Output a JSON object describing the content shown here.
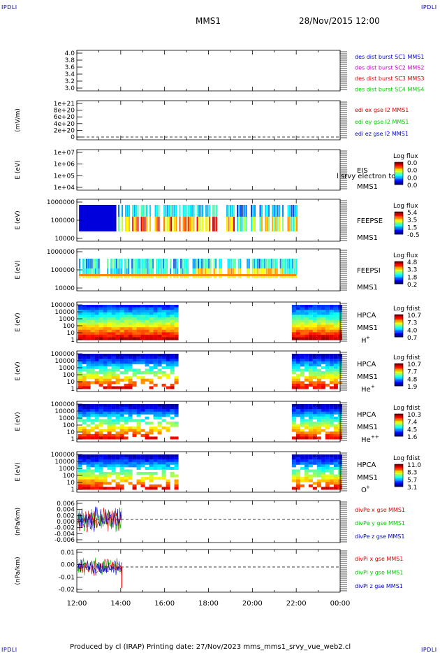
{
  "corner_tag": "IPDLI",
  "header": {
    "spacecraft": "MMS1",
    "date": "28/Nov/2015 12:00"
  },
  "footer": {
    "text": "Produced by cl (IRAP)   Printing date: 27/Nov/2023   mms_mms1_srvy_vue_web2.cl"
  },
  "time_axis": {
    "labels": [
      "12:00",
      "14:00",
      "16:00",
      "18:00",
      "20:00",
      "22:00",
      "00:00"
    ]
  },
  "colors": {
    "red": "#dd0000",
    "green": "#00cc00",
    "blue": "#0000cc",
    "magenta": "#cc00cc"
  },
  "chart_data": [
    {
      "type": "line",
      "yticks": [
        "4.0",
        "3.8",
        "3.6",
        "3.4",
        "3.2",
        "3.0"
      ],
      "legend": [
        {
          "text": "des dist burst SC1 MMS1",
          "color": "#0000cc"
        },
        {
          "text": "des dist burst SC2 MMS2",
          "color": "#cc00cc"
        },
        {
          "text": "des dist burst SC3 MMS3",
          "color": "#dd0000"
        },
        {
          "text": "des dist burst SC4 MMS4",
          "color": "#00cc00"
        }
      ]
    },
    {
      "type": "line",
      "ylabel": "(mV/m)",
      "yticks": [
        "1e+21",
        "8e+20",
        "6e+20",
        "4e+20",
        "2e+20",
        "0"
      ],
      "legend": [
        {
          "text": "edi ex gse l2 MMS1",
          "color": "#dd0000"
        },
        {
          "text": "edi ey gse l2 MMS1",
          "color": "#00cc00"
        },
        {
          "text": "edi ez gse l2 MMS1",
          "color": "#0000cc"
        }
      ]
    },
    {
      "type": "heatmap",
      "ylabel": "E (eV)",
      "yticks": [
        "1e+07",
        "1e+06",
        "1e+05",
        "1e+04"
      ],
      "instrument": "EIS",
      "spacecraft": "MMS1",
      "extra_label": "l srvy electron to",
      "cbar_title": "Log flux",
      "cbar_ticks": [
        "0.0",
        "0.0",
        "0.0",
        "0.0"
      ]
    },
    {
      "type": "heatmap",
      "ylabel": "E (eV)",
      "yticks": [
        "1000000",
        "100000",
        "10000"
      ],
      "instrument": "FEEPSE",
      "spacecraft": "MMS1",
      "cbar_title": "Log flux",
      "cbar_ticks": [
        "5.4",
        "3.5",
        "1.5",
        "-0.5"
      ]
    },
    {
      "type": "heatmap",
      "ylabel": "E (eV)",
      "yticks": [
        "1000000",
        "100000",
        "10000"
      ],
      "instrument": "FEEPSI",
      "spacecraft": "MMS1",
      "cbar_title": "Log flux",
      "cbar_ticks": [
        "4.8",
        "3.3",
        "1.8",
        "0.2"
      ]
    },
    {
      "type": "heatmap",
      "ylabel": "E (eV)",
      "yticks": [
        "100000",
        "10000",
        "1000",
        "100",
        "10",
        "1"
      ],
      "instrument": "HPCA",
      "spacecraft": "MMS1",
      "species": "H",
      "species_sup": "+",
      "cbar_title": "Log fdist",
      "cbar_ticks": [
        "10.7",
        "7.3",
        "4.0",
        "0.7"
      ]
    },
    {
      "type": "heatmap",
      "ylabel": "E (eV)",
      "yticks": [
        "100000",
        "10000",
        "1000",
        "100",
        "10",
        "1"
      ],
      "instrument": "HPCA",
      "spacecraft": "MMS1",
      "species": "He",
      "species_sup": "+",
      "cbar_title": "Log fdist",
      "cbar_ticks": [
        "10.7",
        "7.7",
        "4.8",
        "1.9"
      ]
    },
    {
      "type": "heatmap",
      "ylabel": "E (eV)",
      "yticks": [
        "100000",
        "10000",
        "1000",
        "100",
        "10",
        "1"
      ],
      "instrument": "HPCA",
      "spacecraft": "MMS1",
      "species": "He",
      "species_sup": "++",
      "cbar_title": "Log fdist",
      "cbar_ticks": [
        "10.3",
        "7.4",
        "4.5",
        "1.6"
      ]
    },
    {
      "type": "heatmap",
      "ylabel": "E (eV)",
      "yticks": [
        "100000",
        "10000",
        "1000",
        "100",
        "10",
        "1"
      ],
      "instrument": "HPCA",
      "spacecraft": "MMS1",
      "species": "O",
      "species_sup": "+",
      "cbar_title": "Log fdist",
      "cbar_ticks": [
        "11.0",
        "8.3",
        "5.7",
        "3.1"
      ]
    },
    {
      "type": "line",
      "ylabel": "(nPa/km)",
      "yticks": [
        "0.006",
        "0.004",
        "0.002",
        "0.000",
        "-0.002",
        "-0.004",
        "-0.006"
      ],
      "legend": [
        {
          "text": "divPe x gse MMS1",
          "color": "#dd0000"
        },
        {
          "text": "divPe y gse MMS1",
          "color": "#00cc00"
        },
        {
          "text": "divPe z gse MMS1",
          "color": "#0000cc"
        }
      ]
    },
    {
      "type": "line",
      "ylabel": "(nPa/km)",
      "yticks": [
        "0.01",
        "0.00",
        "-0.01",
        "-0.02"
      ],
      "legend": [
        {
          "text": "divPi x gse MMS1",
          "color": "#dd0000"
        },
        {
          "text": "divPi y gse MMS1",
          "color": "#00cc00"
        },
        {
          "text": "divPi z gse MMS1",
          "color": "#0000cc"
        }
      ]
    }
  ]
}
